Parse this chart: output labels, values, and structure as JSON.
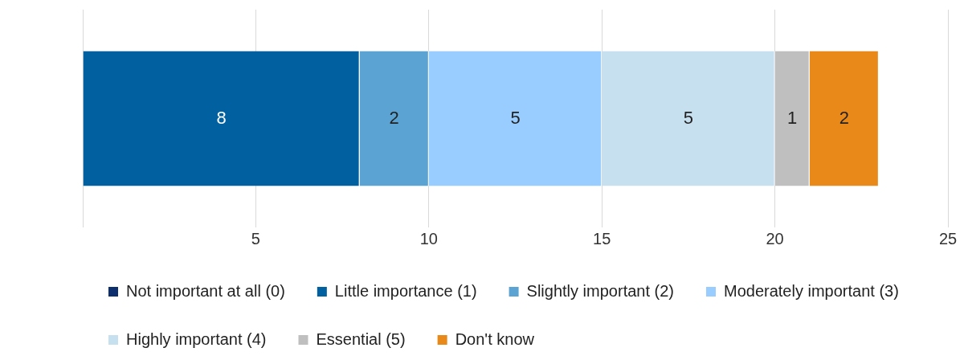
{
  "chart_data": {
    "type": "bar",
    "orientation": "horizontal",
    "stacked": true,
    "categories": [
      null
    ],
    "series": [
      {
        "name": "Not important at all (0)",
        "color": "#0d2f6e",
        "values": [
          0
        ],
        "value_labels": [
          null
        ]
      },
      {
        "name": "Little importance (1)",
        "color": "#0060a0",
        "values": [
          8
        ],
        "value_labels": [
          "8"
        ]
      },
      {
        "name": "Slightly important (2)",
        "color": "#5ba3d3",
        "values": [
          2
        ],
        "value_labels": [
          "2"
        ]
      },
      {
        "name": "Moderately important (3)",
        "color": "#99ccff",
        "values": [
          5
        ],
        "value_labels": [
          "5"
        ]
      },
      {
        "name": "Highly important (4)",
        "color": "#c7e0f0",
        "values": [
          5
        ],
        "value_labels": [
          "5"
        ]
      },
      {
        "name": "Essential (5)",
        "color": "#bfbfbf",
        "values": [
          1
        ],
        "value_labels": [
          "1"
        ]
      },
      {
        "name": "Don't know",
        "color": "#e8891a",
        "values": [
          2
        ],
        "value_labels": [
          "2"
        ]
      }
    ],
    "xlim": [
      0,
      25
    ],
    "xticks": [
      {
        "value": 0,
        "label": null
      },
      5,
      10,
      15,
      20,
      25
    ],
    "grid": "x",
    "legend": "bottom"
  }
}
